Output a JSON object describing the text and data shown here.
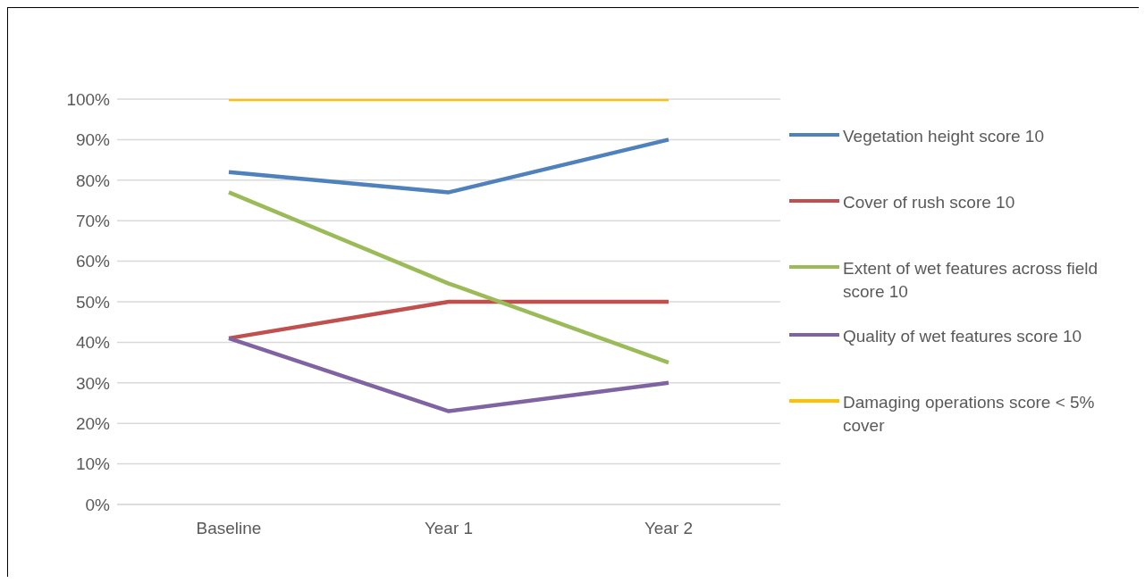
{
  "chart_data": {
    "type": "line",
    "categories": [
      "Baseline",
      "Year 1",
      "Year 2"
    ],
    "series": [
      {
        "name": "Vegetation height score 10",
        "color": "#4f81bd",
        "values": [
          82,
          77,
          90
        ]
      },
      {
        "name": "Cover of rush score 10",
        "color": "#c0504d",
        "values": [
          41,
          50,
          50
        ]
      },
      {
        "name": "Extent of wet features across field score 10",
        "color": "#9bbb59",
        "values": [
          77,
          54.5,
          35
        ]
      },
      {
        "name": "Quality of wet features score 10",
        "color": "#8064a2",
        "values": [
          41,
          23,
          30
        ]
      },
      {
        "name": "Damaging operations score < 5% cover",
        "color": "#ffc000",
        "values": [
          100,
          100,
          100
        ]
      }
    ],
    "ylim": [
      0,
      100
    ],
    "yticks": [
      {
        "value": 0,
        "label": "0%"
      },
      {
        "value": 10,
        "label": "10%"
      },
      {
        "value": 20,
        "label": "20%"
      },
      {
        "value": 30,
        "label": "30%"
      },
      {
        "value": 40,
        "label": "40%"
      },
      {
        "value": 50,
        "label": "50%"
      },
      {
        "value": 60,
        "label": "60%"
      },
      {
        "value": 70,
        "label": "70%"
      },
      {
        "value": 80,
        "label": "80%"
      },
      {
        "value": 90,
        "label": "90%"
      },
      {
        "value": 100,
        "label": "100%"
      }
    ],
    "grid": "y",
    "legend": "right",
    "marker": "none",
    "line_style": "solid"
  }
}
